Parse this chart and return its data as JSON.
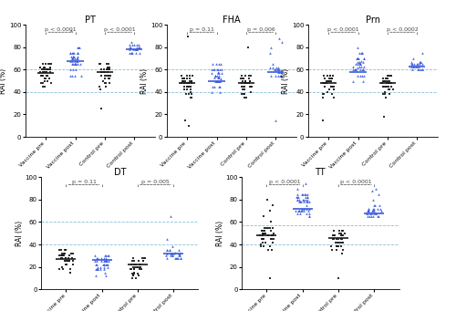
{
  "panels": [
    {
      "title": "PT",
      "ylabel": "RAI (%)",
      "ylim": [
        0,
        100
      ],
      "yticks": [
        0,
        20,
        40,
        60,
        80,
        100
      ],
      "hlines": [
        40,
        60
      ],
      "groups": [
        "Vaccine pre",
        "Vaccine post",
        "Control pre",
        "Control post"
      ],
      "pvalue_pairs": [
        {
          "pair": [
            0,
            1
          ],
          "label": "p < 0.0001"
        },
        {
          "pair": [
            2,
            3
          ],
          "label": "p < 0.0001"
        }
      ],
      "gmeans": [
        57,
        68,
        58,
        78
      ],
      "data": [
        [
          55,
          60,
          58,
          52,
          65,
          62,
          48,
          55,
          58,
          60,
          62,
          65,
          50,
          45,
          55,
          58,
          62,
          60,
          55,
          52,
          48,
          65,
          58,
          60,
          55,
          52,
          58,
          60,
          62,
          65,
          48,
          55,
          58,
          60,
          45,
          55,
          60,
          58,
          62,
          65,
          50
        ],
        [
          55,
          70,
          75,
          65,
          80,
          68,
          72,
          60,
          65,
          70,
          75,
          65,
          55,
          68,
          72,
          75,
          80,
          65,
          70,
          75,
          68,
          72,
          60,
          65,
          70,
          75,
          65,
          55,
          68,
          72,
          75,
          80,
          65,
          70,
          75,
          68,
          55,
          72,
          60,
          95,
          65,
          70,
          65,
          75
        ],
        [
          55,
          60,
          58,
          52,
          65,
          62,
          48,
          55,
          58,
          60,
          62,
          65,
          50,
          45,
          55,
          58,
          62,
          60,
          55,
          52,
          48,
          65,
          58,
          60,
          55,
          52,
          58,
          60,
          25,
          65,
          48,
          55,
          42,
          60,
          45
        ],
        [
          75,
          80,
          78,
          82,
          85,
          75,
          80,
          78,
          75,
          82,
          80,
          75,
          78,
          82,
          80,
          75,
          78,
          80,
          82,
          78,
          80,
          75,
          78,
          80,
          82
        ]
      ]
    },
    {
      "title": "FHA",
      "ylabel": "RAI (%)",
      "ylim": [
        0,
        100
      ],
      "yticks": [
        0,
        20,
        40,
        60,
        80,
        100
      ],
      "hlines": [
        40,
        60
      ],
      "groups": [
        "Vaccine pre",
        "Vaccine post",
        "Control pre",
        "Control post"
      ],
      "pvalue_pairs": [
        {
          "pair": [
            0,
            1
          ],
          "label": "p = 0.11"
        },
        {
          "pair": [
            2,
            3
          ],
          "label": "p = 0.006"
        }
      ],
      "gmeans": [
        48,
        50,
        48,
        58
      ],
      "data": [
        [
          45,
          50,
          48,
          42,
          55,
          52,
          38,
          45,
          48,
          50,
          52,
          55,
          40,
          35,
          45,
          48,
          52,
          50,
          45,
          42,
          38,
          55,
          48,
          50,
          45,
          42,
          48,
          50,
          52,
          55,
          38,
          45,
          48,
          50,
          35,
          45,
          50,
          48,
          52,
          15,
          10,
          90
        ],
        [
          45,
          55,
          60,
          50,
          65,
          58,
          52,
          45,
          50,
          55,
          60,
          50,
          40,
          53,
          57,
          60,
          65,
          50,
          55,
          60,
          53,
          57,
          45,
          50,
          55,
          60,
          50,
          40,
          53,
          57,
          60,
          65,
          50,
          55,
          60,
          45,
          53,
          50,
          57,
          65
        ],
        [
          45,
          50,
          48,
          42,
          55,
          52,
          38,
          45,
          48,
          50,
          52,
          55,
          40,
          35,
          45,
          48,
          52,
          50,
          45,
          42,
          38,
          55,
          48,
          50,
          45,
          42,
          48,
          50,
          80,
          52,
          55,
          38,
          45,
          48,
          50,
          35
        ],
        [
          55,
          60,
          58,
          62,
          65,
          55,
          60,
          58,
          55,
          62,
          15,
          60,
          55,
          58,
          62,
          60,
          55,
          58,
          62,
          60,
          55,
          75,
          80,
          85,
          88
        ]
      ]
    },
    {
      "title": "Prn",
      "ylabel": "RAI (%)",
      "ylim": [
        0,
        100
      ],
      "yticks": [
        0,
        20,
        40,
        60,
        80,
        100
      ],
      "hlines": [
        40,
        60
      ],
      "groups": [
        "Vaccine pre",
        "Vaccine post",
        "Control pre",
        "Control post"
      ],
      "pvalue_pairs": [
        {
          "pair": [
            0,
            1
          ],
          "label": "p < 0.0001"
        },
        {
          "pair": [
            2,
            3
          ],
          "label": "p < 0.0002"
        }
      ],
      "gmeans": [
        48,
        58,
        48,
        63
      ],
      "data": [
        [
          45,
          50,
          48,
          42,
          55,
          52,
          38,
          45,
          48,
          50,
          52,
          55,
          40,
          35,
          45,
          48,
          52,
          50,
          45,
          42,
          38,
          55,
          48,
          50,
          45,
          42,
          48,
          50,
          52,
          55,
          38,
          45,
          48,
          50,
          35,
          45,
          50,
          48,
          52,
          55,
          15
        ],
        [
          55,
          65,
          70,
          60,
          75,
          68,
          62,
          55,
          60,
          65,
          70,
          60,
          50,
          63,
          67,
          70,
          75,
          60,
          65,
          70,
          63,
          67,
          55,
          60,
          65,
          70,
          60,
          50,
          63,
          67,
          70,
          75,
          60,
          65,
          70,
          55,
          63,
          60,
          67,
          75,
          80
        ],
        [
          45,
          50,
          48,
          42,
          55,
          52,
          38,
          45,
          48,
          50,
          52,
          55,
          40,
          35,
          45,
          48,
          52,
          50,
          45,
          42,
          38,
          55,
          48,
          50,
          45,
          42,
          48,
          50,
          18,
          52,
          55,
          38,
          45,
          48,
          50
        ],
        [
          60,
          65,
          63,
          67,
          70,
          60,
          65,
          63,
          60,
          67,
          65,
          60,
          63,
          67,
          65,
          60,
          63,
          65,
          67,
          63,
          65,
          60,
          63,
          65,
          67,
          75
        ]
      ]
    },
    {
      "title": "DT",
      "ylabel": "RAI (%)",
      "ylim": [
        0,
        100
      ],
      "yticks": [
        0,
        20,
        40,
        60,
        80,
        100
      ],
      "hlines": [
        40,
        60
      ],
      "groups": [
        "Vaccine pre",
        "Vaccine post",
        "Control pre",
        "Control post"
      ],
      "pvalue_pairs": [
        {
          "pair": [
            0,
            1
          ],
          "label": "p = 0.11"
        },
        {
          "pair": [
            2,
            3
          ],
          "label": "p = 0.005"
        }
      ],
      "gmeans": [
        27,
        26,
        22,
        32
      ],
      "data": [
        [
          25,
          30,
          28,
          22,
          35,
          32,
          18,
          25,
          28,
          30,
          32,
          35,
          20,
          15,
          25,
          28,
          32,
          30,
          25,
          22,
          18,
          35,
          28,
          30,
          25,
          22,
          28,
          30,
          32,
          35,
          18,
          25,
          28,
          30,
          15,
          25,
          30,
          28,
          32,
          35
        ],
        [
          20,
          25,
          28,
          18,
          30,
          22,
          15,
          20,
          25,
          28,
          30,
          22,
          12,
          18,
          22,
          25,
          30,
          20,
          25,
          28,
          22,
          25,
          18,
          22,
          25,
          28,
          22,
          12,
          18,
          22,
          25,
          30,
          20,
          25,
          28,
          18,
          22,
          18,
          25,
          30
        ],
        [
          18,
          22,
          20,
          14,
          28,
          25,
          12,
          18,
          20,
          22,
          25,
          28,
          15,
          10,
          18,
          20,
          25,
          22,
          18,
          14,
          12,
          28,
          20,
          22,
          18,
          14,
          20,
          22,
          25,
          28,
          12,
          18,
          20,
          22,
          10,
          25
        ],
        [
          28,
          32,
          30,
          35,
          38,
          28,
          32,
          30,
          28,
          35,
          33,
          28,
          30,
          35,
          32,
          28,
          30,
          32,
          35,
          30,
          32,
          65,
          28,
          30,
          32,
          35,
          45,
          28
        ]
      ]
    },
    {
      "title": "TT",
      "ylabel": "RAI (%)",
      "ylim": [
        0,
        100
      ],
      "yticks": [
        0,
        20,
        40,
        60,
        80,
        100
      ],
      "hlines": [
        40,
        57
      ],
      "groups": [
        "Vaccine pre",
        "Vaccine post",
        "Control pre",
        "Control post"
      ],
      "pvalue_pairs": [
        {
          "pair": [
            0,
            1
          ],
          "label": "p < 0.0001"
        },
        {
          "pair": [
            2,
            3
          ],
          "label": "p < 0.0001"
        }
      ],
      "gmeans": [
        48,
        72,
        46,
        68
      ],
      "data": [
        [
          45,
          50,
          48,
          42,
          55,
          52,
          38,
          45,
          48,
          50,
          52,
          55,
          40,
          35,
          45,
          48,
          52,
          50,
          45,
          42,
          38,
          55,
          48,
          50,
          45,
          42,
          48,
          50,
          52,
          55,
          38,
          45,
          48,
          50,
          35,
          45,
          50,
          48,
          52,
          55,
          10,
          60,
          65,
          70,
          75,
          80
        ],
        [
          70,
          80,
          78,
          72,
          85,
          82,
          68,
          70,
          78,
          80,
          82,
          85,
          70,
          65,
          70,
          78,
          82,
          80,
          70,
          72,
          68,
          85,
          78,
          80,
          70,
          72,
          78,
          80,
          82,
          85,
          68,
          70,
          78,
          80,
          65,
          70,
          80,
          78,
          82,
          85,
          90,
          95,
          75,
          72,
          68,
          82,
          85
        ],
        [
          42,
          48,
          45,
          38,
          52,
          48,
          35,
          42,
          45,
          48,
          50,
          52,
          38,
          32,
          42,
          45,
          50,
          48,
          42,
          38,
          35,
          52,
          45,
          48,
          42,
          38,
          45,
          48,
          10,
          50,
          52,
          35,
          42,
          45,
          48,
          38
        ],
        [
          65,
          70,
          68,
          72,
          75,
          65,
          70,
          68,
          65,
          72,
          70,
          65,
          68,
          72,
          70,
          65,
          68,
          70,
          72,
          68,
          70,
          65,
          68,
          70,
          72,
          80,
          85,
          88,
          90,
          75,
          72,
          68,
          75
        ]
      ]
    }
  ],
  "black_color": "#1a1a1a",
  "blue_color": "#3b5bdb",
  "hline_color": "#7eb8d4",
  "bg_color": "#ffffff",
  "bracket_color": "#444444",
  "pvalue_fontsize": 4.5,
  "title_fontsize": 7,
  "ylabel_fontsize": 5.5,
  "tick_fontsize": 5,
  "xtick_fontsize": 4.5,
  "marker_size": 3.5,
  "gmean_lw": 1.2
}
